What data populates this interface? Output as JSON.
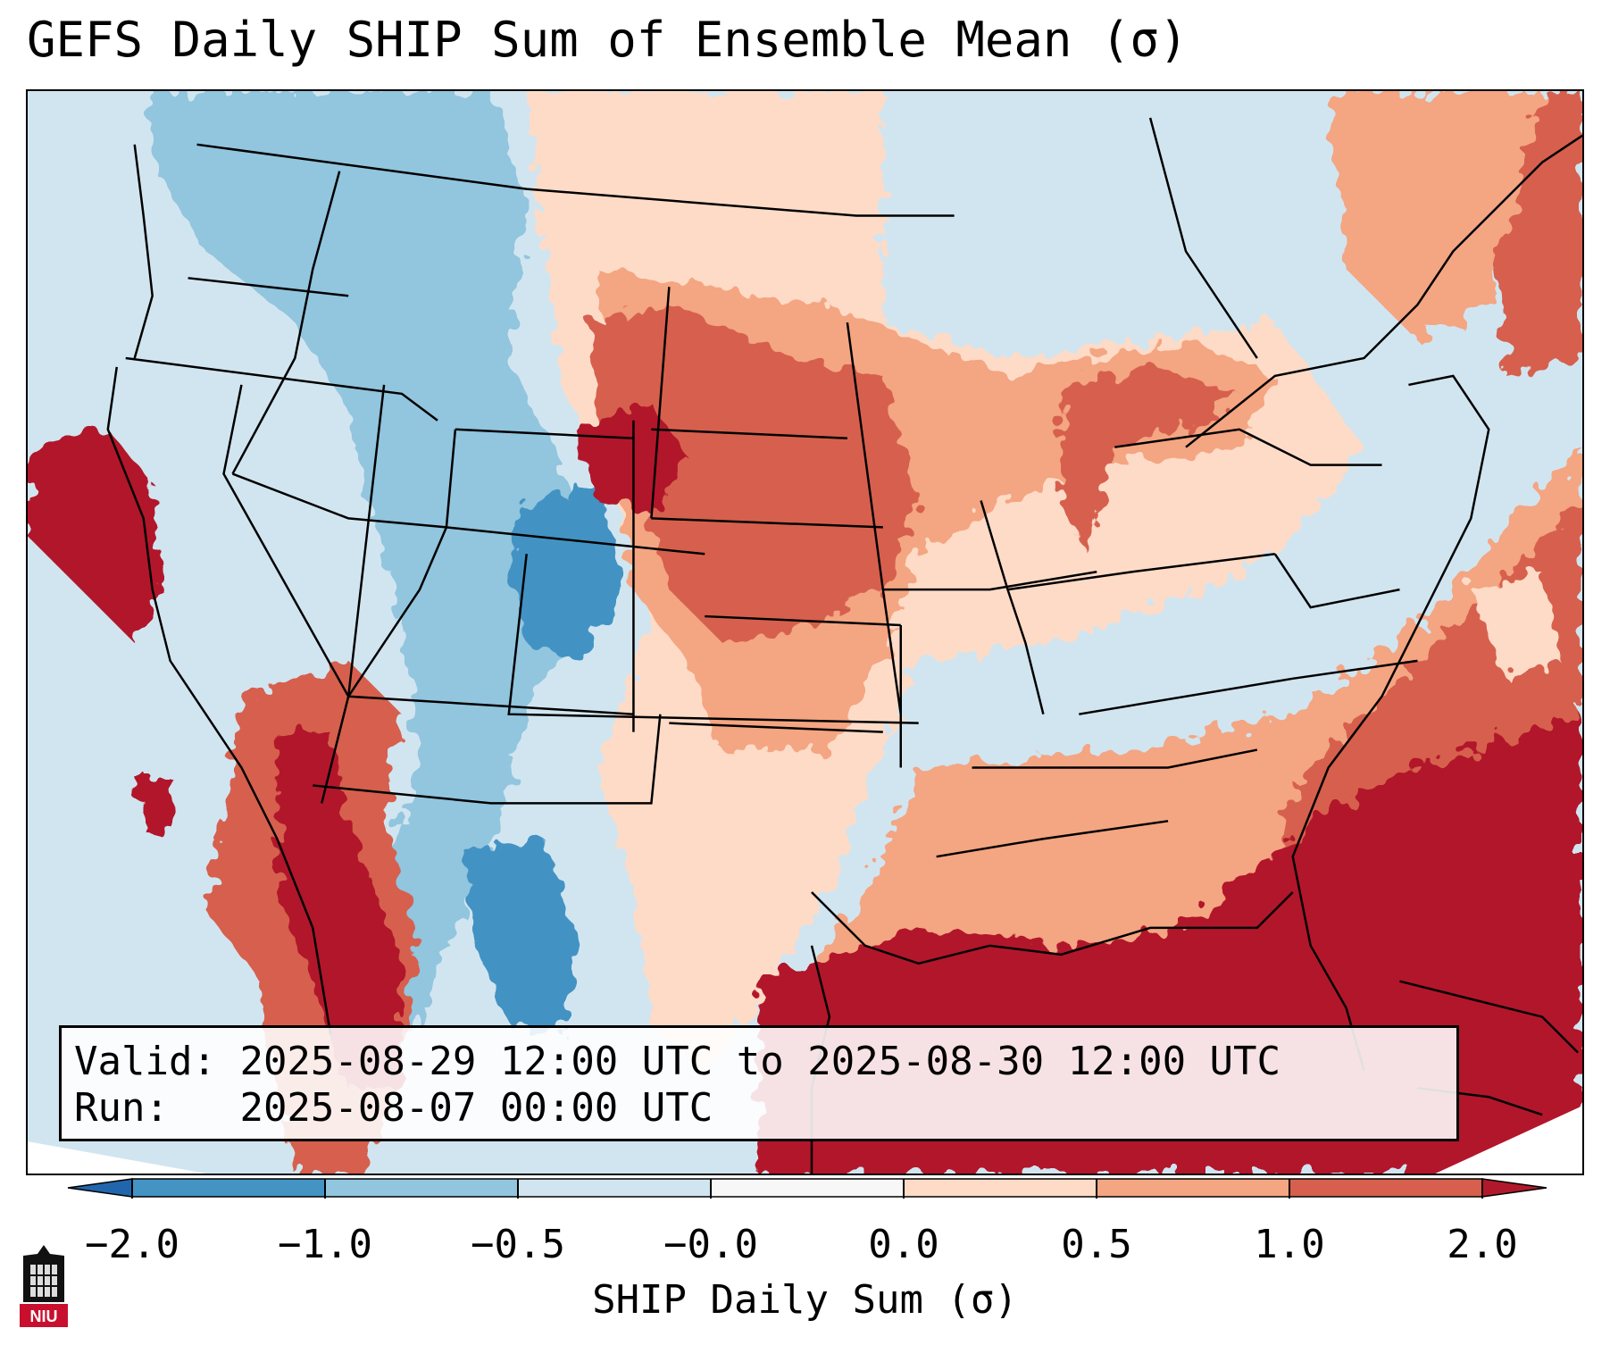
{
  "title": "GEFS Daily SHIP Sum of Ensemble Mean (σ)",
  "info": {
    "valid_label": "Valid:",
    "valid_value": "2025-08-29 12:00 UTC to 2025-08-30 12:00 UTC",
    "run_label": "Run:",
    "run_value": "2025-08-07 00:00 UTC"
  },
  "colorbar": {
    "label": "SHIP Daily Sum (σ)",
    "ticks": [
      "−2.0",
      "−1.0",
      "−0.5",
      "−0.0",
      "0.0",
      "0.5",
      "1.0",
      "2.0"
    ],
    "colors": [
      "#2166ac",
      "#4393c3",
      "#92c5de",
      "#d1e5f0",
      "#f7f7f7",
      "#fddbc7",
      "#f4a582",
      "#d6604d",
      "#b2182b"
    ]
  },
  "map_regions": {
    "background": "−0.5 to 0.0",
    "northern_rockies": "−1.0 to −0.5",
    "colorado_utah": "−2.0 to −1.0",
    "northern_plains": "1.0 to 2.0",
    "central_plains": "0.5 to 1.0",
    "gulf_of_mexico": "> 2.0",
    "western_atlantic": "> 2.0",
    "baja_california": "> 2.0",
    "eastern_states": "−0.5 to 0.0",
    "texas": "0.0 to 0.5"
  },
  "logo_text": "NIU"
}
